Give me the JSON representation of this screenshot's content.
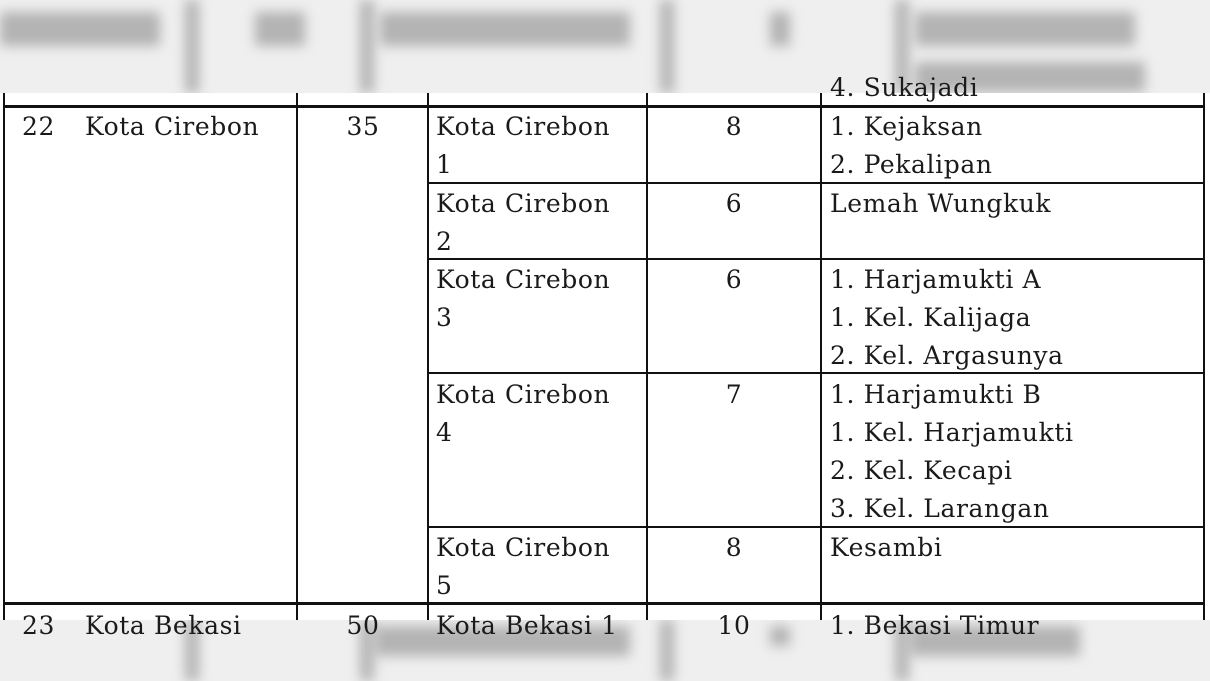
{
  "prev_row_tail": "4. Sukajadi",
  "row": {
    "no": "22",
    "region": "Kota Cirebon",
    "total": "35",
    "districts": [
      {
        "name_line1": "Kota Cirebon",
        "name_line2": "1",
        "count": "8",
        "areas": [
          "1. Kejaksan",
          "2. Pekalipan"
        ]
      },
      {
        "name_line1": "Kota Cirebon",
        "name_line2": "2",
        "count": "6",
        "areas": [
          "Lemah Wungkuk"
        ]
      },
      {
        "name_line1": "Kota Cirebon",
        "name_line2": "3",
        "count": "6",
        "areas": [
          "1. Harjamukti A",
          "1. Kel. Kalijaga",
          "2. Kel. Argasunya"
        ]
      },
      {
        "name_line1": "Kota Cirebon",
        "name_line2": "4",
        "count": "7",
        "areas": [
          "1. Harjamukti B",
          "1. Kel. Harjamukti",
          "2. Kel. Kecapi",
          "3. Kel. Larangan"
        ]
      },
      {
        "name_line1": "Kota Cirebon",
        "name_line2": "5",
        "count": "8",
        "areas": [
          "Kesambi"
        ]
      }
    ]
  },
  "next_row": {
    "no": "23",
    "region": "Kota Bekasi",
    "total": "50",
    "district": "Kota Bekasi 1",
    "count": "10",
    "area": "1. Bekasi Timur"
  }
}
